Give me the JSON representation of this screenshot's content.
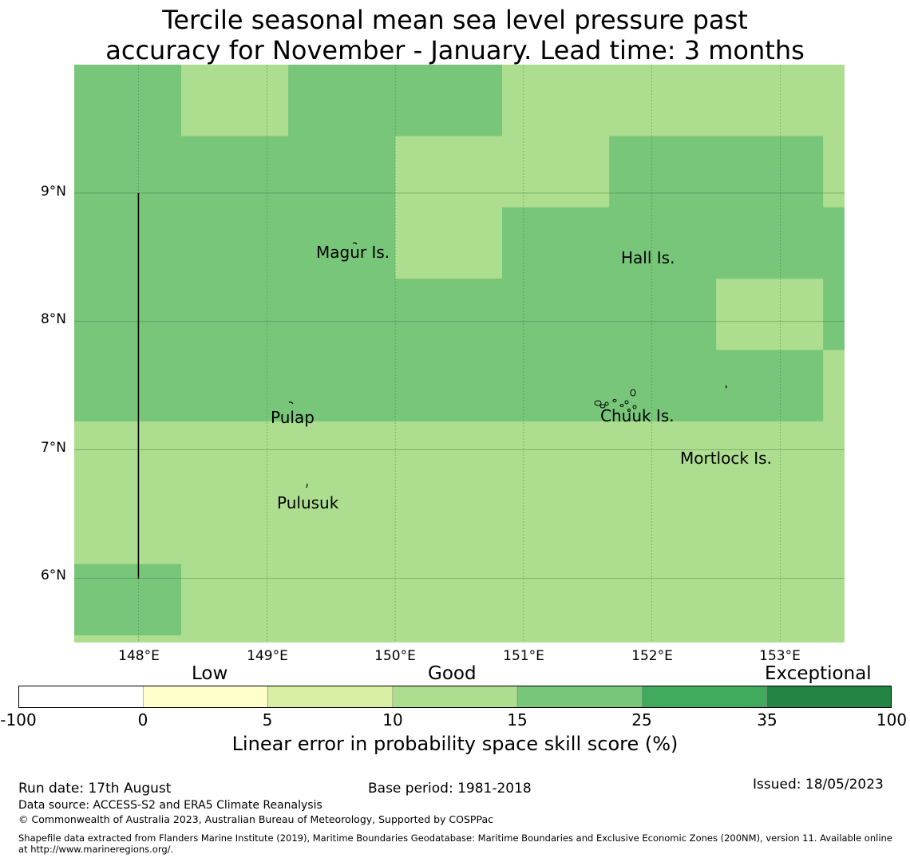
{
  "title": {
    "line1": "Tercile seasonal mean sea level pressure past",
    "line2": "accuracy for November - January. Lead time: 3 months"
  },
  "map": {
    "lon_range": [
      147.5,
      153.5
    ],
    "lat_range": [
      5.5,
      10.0
    ],
    "x_ticks": [
      "148°E",
      "149°E",
      "150°E",
      "151°E",
      "152°E",
      "153°E"
    ],
    "y_ticks": [
      "9°N",
      "8°N",
      "7°N",
      "6°N"
    ],
    "grid": true,
    "cell_values_note_colors": {
      "15-25": "#78c679",
      "10-15": "#addd8e"
    },
    "cells": [
      {
        "lon": [
          147.5,
          148.333
        ],
        "lat": [
          9.444,
          10.0
        ],
        "bin": "15-25"
      },
      {
        "lon": [
          148.333,
          149.167
        ],
        "lat": [
          9.444,
          10.0
        ],
        "bin": "10-15"
      },
      {
        "lon": [
          149.167,
          150.833
        ],
        "lat": [
          9.444,
          10.0
        ],
        "bin": "15-25"
      },
      {
        "lon": [
          150.833,
          153.5
        ],
        "lat": [
          9.444,
          10.0
        ],
        "bin": "10-15"
      },
      {
        "lon": [
          147.5,
          150.0
        ],
        "lat": [
          7.222,
          9.444
        ],
        "bin": "15-25"
      },
      {
        "lon": [
          150.0,
          151.667
        ],
        "lat": [
          8.889,
          9.444
        ],
        "bin": "10-15"
      },
      {
        "lon": [
          151.667,
          153.333
        ],
        "lat": [
          8.889,
          9.444
        ],
        "bin": "15-25"
      },
      {
        "lon": [
          153.333,
          153.5
        ],
        "lat": [
          8.889,
          9.444
        ],
        "bin": "10-15"
      },
      {
        "lon": [
          150.0,
          150.833
        ],
        "lat": [
          8.333,
          8.889
        ],
        "bin": "10-15"
      },
      {
        "lon": [
          150.833,
          153.5
        ],
        "lat": [
          8.333,
          8.889
        ],
        "bin": "15-25"
      },
      {
        "lon": [
          150.0,
          152.5
        ],
        "lat": [
          7.222,
          8.333
        ],
        "bin": "15-25"
      },
      {
        "lon": [
          152.5,
          153.333
        ],
        "lat": [
          7.778,
          8.333
        ],
        "bin": "10-15"
      },
      {
        "lon": [
          153.333,
          153.5
        ],
        "lat": [
          7.778,
          8.333
        ],
        "bin": "15-25"
      },
      {
        "lon": [
          152.5,
          153.333
        ],
        "lat": [
          7.222,
          7.778
        ],
        "bin": "15-25"
      },
      {
        "lon": [
          153.333,
          153.5
        ],
        "lat": [
          7.222,
          7.778
        ],
        "bin": "10-15"
      },
      {
        "lon": [
          147.5,
          153.5
        ],
        "lat": [
          6.111,
          7.222
        ],
        "bin": "10-15"
      },
      {
        "lon": [
          147.5,
          148.333
        ],
        "lat": [
          5.556,
          6.111
        ],
        "bin": "15-25"
      },
      {
        "lon": [
          148.333,
          153.5
        ],
        "lat": [
          5.556,
          6.111
        ],
        "bin": "10-15"
      },
      {
        "lon": [
          147.5,
          153.5
        ],
        "lat": [
          5.5,
          5.556
        ],
        "bin": "10-15"
      }
    ],
    "boundary_line": {
      "lon": 148.0,
      "lat": [
        6.0,
        9.0
      ]
    },
    "places": [
      {
        "name": "Magur Is.",
        "lon": 149.68,
        "lat": 8.53
      },
      {
        "name": "Hall Is.",
        "lon": 151.97,
        "lat": 8.49
      },
      {
        "name": "Pulap",
        "lon": 149.21,
        "lat": 7.25
      },
      {
        "name": "Chuuk Is.",
        "lon": 151.87,
        "lat": 7.26
      },
      {
        "name": "Mortlock Is.",
        "lon": 152.59,
        "lat": 6.93
      },
      {
        "name": "Pulusuk",
        "lon": 149.33,
        "lat": 6.58
      }
    ]
  },
  "legend": {
    "categories": [
      "Low",
      "Good",
      "Exceptional"
    ],
    "ticks": [
      "-100",
      "0",
      "5",
      "10",
      "15",
      "25",
      "35",
      "100"
    ],
    "colors": [
      "#ffffff",
      "#ffffcc",
      "#d9f0a3",
      "#addd8e",
      "#78c679",
      "#41ab5d",
      "#238443"
    ],
    "label": "Linear error in probability space skill score (%)"
  },
  "footer": {
    "run_date": "Run date: 17th August",
    "base_period": "Base period: 1981-2018",
    "issued": "Issued: 18/05/2023",
    "data_source": "Data source: ACCESS-S2 and ERA5 Climate Reanalysis",
    "copyright": "© Commonwealth of Australia 2023, Australian Bureau of Meteorology, Supported by COSPPac",
    "shapefile": "Shapefile data extracted from Flanders Marine Institute (2019), Maritime Boundaries Geodatabase: Maritime Boundaries and Exclusive Economic Zones (200NM), version 11. Available online at http://www.marineregions.org/."
  }
}
